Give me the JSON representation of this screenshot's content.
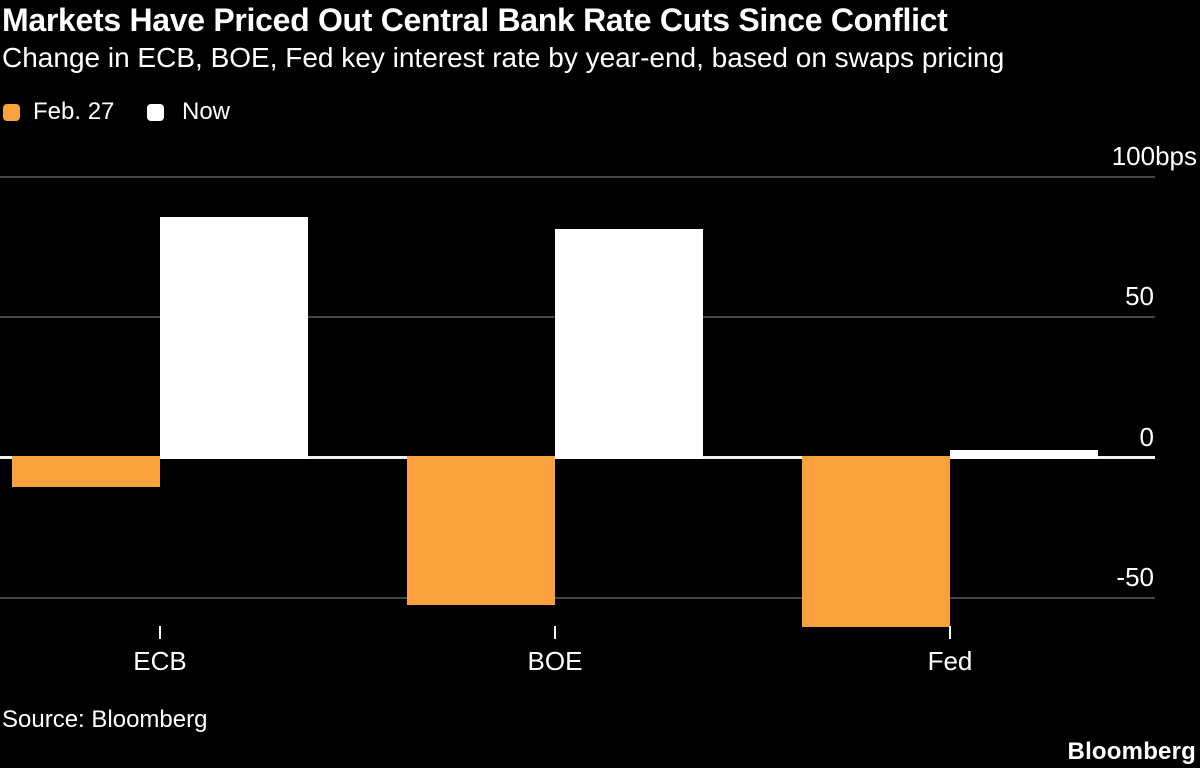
{
  "header": {
    "title": "Markets Have Priced Out Central Bank Rate Cuts Since Conflict",
    "subtitle": "Change in ECB, BOE, Fed key interest rate by year-end, based on swaps pricing"
  },
  "legend": {
    "items": [
      {
        "label": "Feb. 27",
        "color": "#F9A13C"
      },
      {
        "label": "Now",
        "color": "#FFFFFF"
      }
    ],
    "position": "top-left"
  },
  "footer": {
    "source": "Source: Bloomberg",
    "logo": "Bloomberg"
  },
  "colors": {
    "background": "#000000",
    "bar_feb27": "#F9A13C",
    "bar_now": "#FFFFFF",
    "gridline": "#464646",
    "zero_line": "#F2F2F2",
    "text": "#FFFFFF"
  },
  "chart_data": {
    "type": "bar",
    "title": "Markets Have Priced Out Central Bank Rate Cuts Since Conflict",
    "subtitle": "Change in ECB, BOE, Fed key interest rate by year-end, based on swaps pricing",
    "categories": [
      "ECB",
      "BOE",
      "Fed"
    ],
    "series": [
      {
        "name": "Feb. 27",
        "color": "#F9A13C",
        "values": [
          -10,
          -52,
          -60
        ]
      },
      {
        "name": "Now",
        "color": "#FFFFFF",
        "values": [
          85,
          81,
          2
        ]
      }
    ],
    "unit": "bps",
    "xlabel": "",
    "ylabel": "",
    "ylim": [
      -62,
      100
    ],
    "yticks": [
      100,
      50,
      0,
      -50
    ],
    "ytick_labels": [
      "100bps",
      "50",
      "0",
      "-50"
    ],
    "grid": "horizontal",
    "legend_position": "top-left",
    "source": "Bloomberg"
  }
}
